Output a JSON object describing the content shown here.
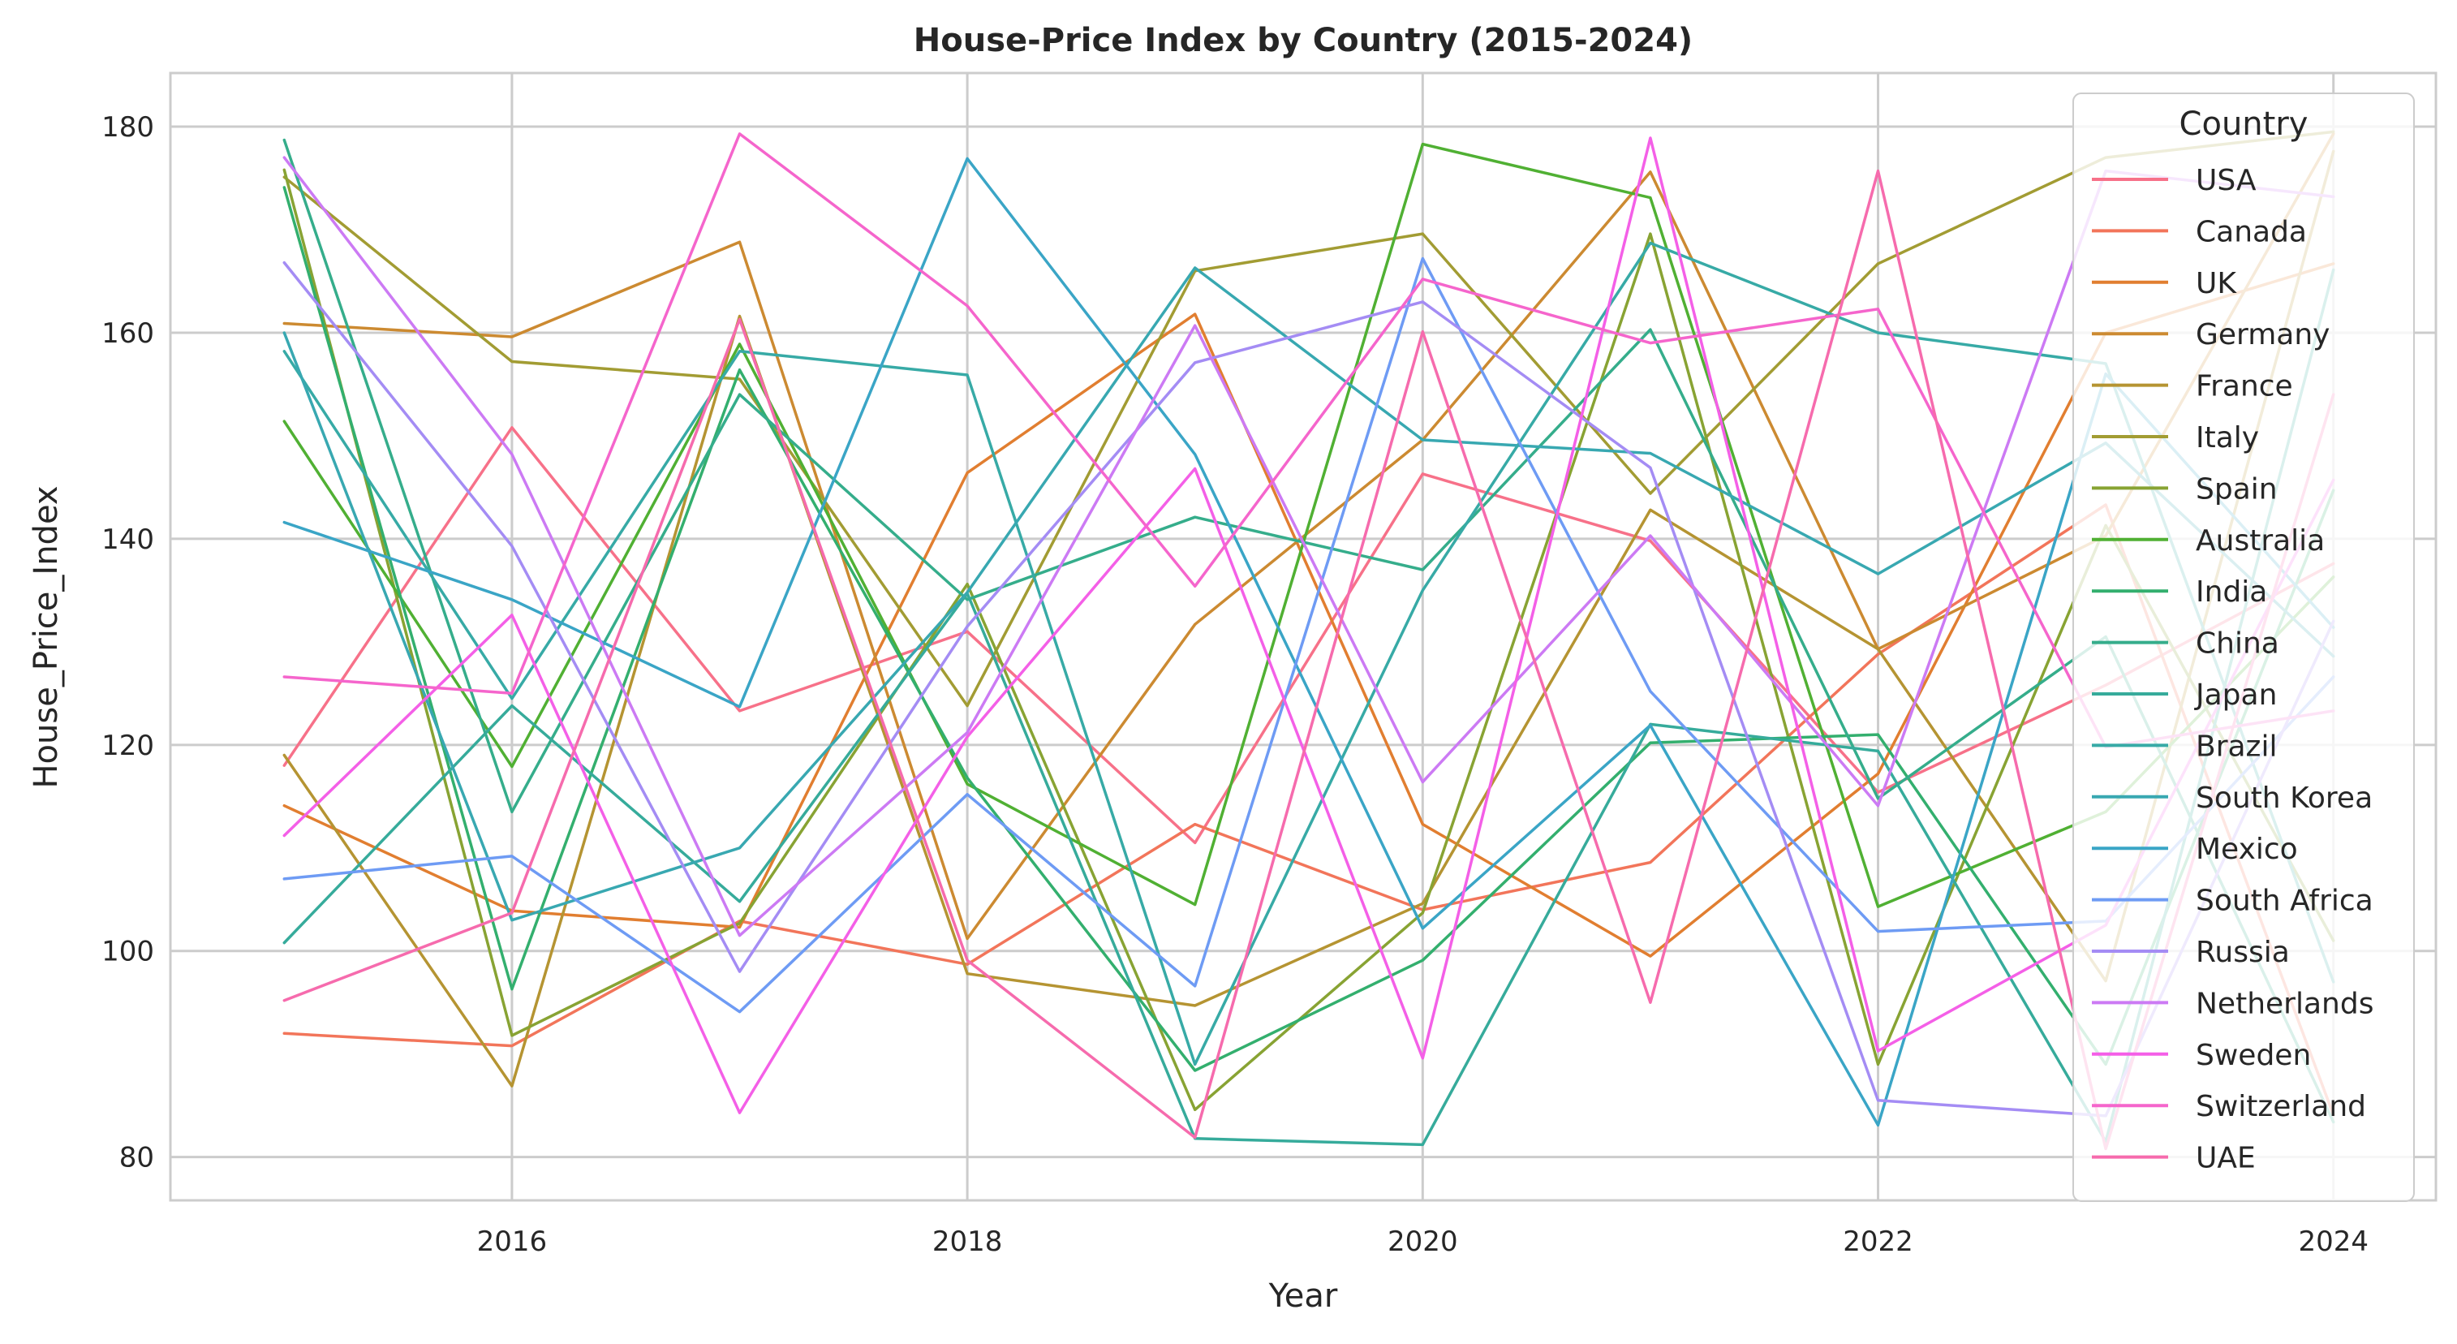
{
  "chart_data": {
    "type": "line",
    "title": "House-Price Index by Country (2015-2024)",
    "xlabel": "Year",
    "ylabel": "House_Price_Index",
    "xlim": [
      2014.5,
      2024.45
    ],
    "ylim": [
      75.8,
      185.2
    ],
    "xticks": [
      2016,
      2018,
      2020,
      2022,
      2024
    ],
    "yticks": [
      80,
      100,
      120,
      140,
      160,
      180
    ],
    "grid": true,
    "legend": {
      "title": "Country",
      "placement": "upper right"
    },
    "x": [
      2015,
      2016,
      2017,
      2018,
      2019,
      2020,
      2021,
      2022,
      2023,
      2024
    ],
    "series": [
      {
        "name": "USA",
        "color": "#f77189",
        "values": [
          118.0,
          150.8,
          123.3,
          131.0,
          110.5,
          146.3,
          139.8,
          115.4,
          125.8,
          137.6
        ]
      },
      {
        "name": "Canada",
        "color": "#f2755a",
        "values": [
          92.0,
          90.8,
          102.9,
          98.7,
          112.3,
          104.0,
          108.6,
          128.8,
          143.3,
          84.1
        ]
      },
      {
        "name": "UK",
        "color": "#e17e30",
        "values": [
          114.1,
          103.9,
          102.3,
          146.4,
          161.8,
          112.3,
          99.5,
          117.2,
          160.0,
          166.7
        ]
      },
      {
        "name": "Germany",
        "color": "#cc8a31",
        "values": [
          160.9,
          159.6,
          168.8,
          101.2,
          131.7,
          149.6,
          175.6,
          129.3,
          140.3,
          179.3
        ]
      },
      {
        "name": "France",
        "color": "#b59432",
        "values": [
          119.0,
          86.9,
          161.6,
          97.8,
          94.7,
          104.6,
          142.8,
          129.3,
          97.1,
          177.6
        ]
      },
      {
        "name": "Italy",
        "color": "#a29c33",
        "values": [
          175.1,
          157.2,
          155.5,
          123.8,
          166.0,
          169.6,
          144.4,
          166.7,
          177.0,
          179.5
        ]
      },
      {
        "name": "Spain",
        "color": "#88a333",
        "values": [
          175.8,
          91.8,
          102.7,
          135.6,
          84.6,
          103.7,
          169.6,
          89.0,
          141.3,
          101.0
        ]
      },
      {
        "name": "Australia",
        "color": "#50b033",
        "values": [
          151.4,
          117.9,
          158.9,
          116.2,
          104.5,
          178.3,
          173.1,
          104.3,
          113.5,
          136.3
        ]
      },
      {
        "name": "India",
        "color": "#33af6e",
        "values": [
          174.1,
          96.3,
          156.4,
          116.8,
          88.4,
          99.1,
          120.2,
          121.0,
          89.0,
          144.7
        ]
      },
      {
        "name": "China",
        "color": "#35ad8b",
        "values": [
          178.7,
          113.5,
          154.0,
          134.1,
          142.1,
          137.0,
          160.3,
          114.8,
          130.5,
          83.4
        ]
      },
      {
        "name": "Japan",
        "color": "#36ab9b",
        "values": [
          100.8,
          123.8,
          104.8,
          134.7,
          81.8,
          81.2,
          122.0,
          119.4,
          81.5,
          166.1
        ]
      },
      {
        "name": "Brazil",
        "color": "#37aaa6",
        "values": [
          158.2,
          124.5,
          158.2,
          155.9,
          89.0,
          135.0,
          168.7,
          160.0,
          157.0,
          97.0
        ]
      },
      {
        "name": "South Korea",
        "color": "#38a8b1",
        "values": [
          160.0,
          103.0,
          110.0,
          134.8,
          166.3,
          149.6,
          148.3,
          136.6,
          149.3,
          128.6
        ]
      },
      {
        "name": "Mexico",
        "color": "#3aa5c6",
        "values": [
          141.6,
          134.1,
          123.7,
          176.9,
          148.2,
          102.2,
          121.9,
          83.1,
          156.0,
          131.4
        ]
      },
      {
        "name": "South Africa",
        "color": "#6e9bf4",
        "values": [
          107.0,
          109.2,
          94.1,
          115.2,
          96.6,
          167.2,
          125.2,
          101.9,
          102.9,
          126.6
        ]
      },
      {
        "name": "Russia",
        "color": "#a48cf4",
        "values": [
          166.8,
          139.3,
          98.0,
          131.5,
          157.1,
          163.0,
          146.9,
          85.5,
          84.0,
          132.0
        ]
      },
      {
        "name": "Netherlands",
        "color": "#cc7af4",
        "values": [
          177.0,
          148.2,
          101.5,
          121.2,
          160.7,
          116.4,
          140.3,
          114.1,
          175.7,
          173.2
        ]
      },
      {
        "name": "Sweden",
        "color": "#f45fe7",
        "values": [
          111.2,
          132.6,
          84.3,
          120.8,
          146.8,
          89.6,
          178.9,
          90.3,
          102.5,
          145.7
        ]
      },
      {
        "name": "Switzerland",
        "color": "#f565cc",
        "values": [
          126.6,
          125.0,
          179.3,
          162.6,
          135.4,
          165.2,
          159.0,
          162.3,
          119.8,
          123.3
        ]
      },
      {
        "name": "UAE",
        "color": "#f66bad",
        "values": [
          95.2,
          103.7,
          161.3,
          99.1,
          81.9,
          160.1,
          95.0,
          175.7,
          80.8,
          154.0
        ]
      }
    ]
  }
}
